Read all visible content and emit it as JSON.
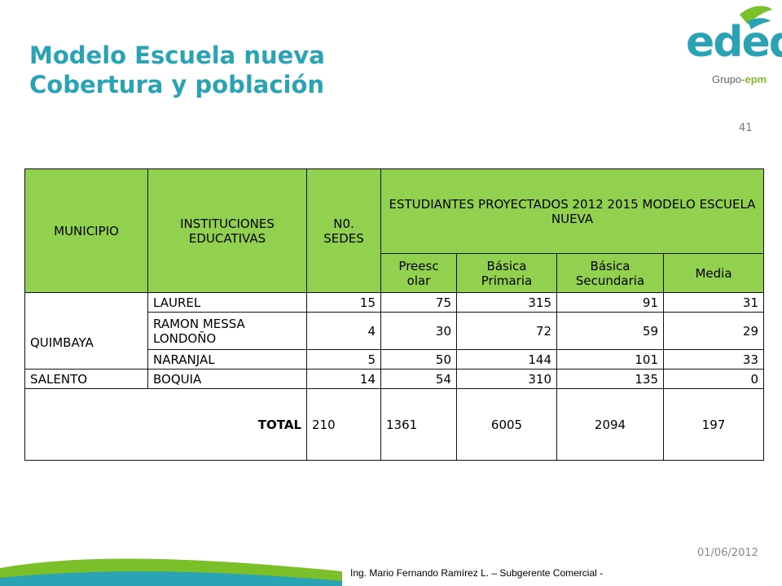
{
  "header": {
    "title_line1": "Modelo Escuela nueva",
    "title_line2": "Cobertura y población",
    "logo_text": "edeq",
    "logo_group_prefix": "Grupo-",
    "logo_group_brand": "epm",
    "page_number": "41"
  },
  "table": {
    "headers": {
      "municipio": "MUNICIPIO",
      "instituciones": "INSTITUCIONES EDUCATIVAS",
      "sedes": "N0. SEDES",
      "estudiantes": "ESTUDIANTES PROYECTADOS 2012 2015 MODELO ESCUELA NUEVA",
      "preescolar": "Preesc olar",
      "primaria": "Básica Primaria",
      "secundaria": "Básica Secundaria",
      "media": "Media"
    },
    "municipalities": [
      "QUIMBAYA",
      "SALENTO"
    ],
    "rows": [
      {
        "institucion": "LAUREL",
        "sedes": "15",
        "preescolar": "75",
        "primaria": "315",
        "secundaria": "91",
        "media": "31"
      },
      {
        "institucion": "RAMON MESSA LONDOÑO",
        "sedes": "4",
        "preescolar": "30",
        "primaria": "72",
        "secundaria": "59",
        "media": "29"
      },
      {
        "institucion": "NARANJAL",
        "sedes": "5",
        "preescolar": "50",
        "primaria": "144",
        "secundaria": "101",
        "media": "33"
      },
      {
        "institucion": "BOQUIA",
        "sedes": "14",
        "preescolar": "54",
        "primaria": "310",
        "secundaria": "135",
        "media": "0"
      }
    ],
    "total": {
      "label": "TOTAL",
      "sedes": "210",
      "preescolar": "1361",
      "primaria": "6005",
      "secundaria": "2094",
      "media": "197"
    }
  },
  "footer": {
    "date": "01/06/2012",
    "credit": "Ing. Mario Fernando Ramírez L. – Subgerente Comercial -"
  },
  "colors": {
    "title": "#2aa3b5",
    "header_fill": "#92d050",
    "logo_green": "#7bbf2a"
  }
}
